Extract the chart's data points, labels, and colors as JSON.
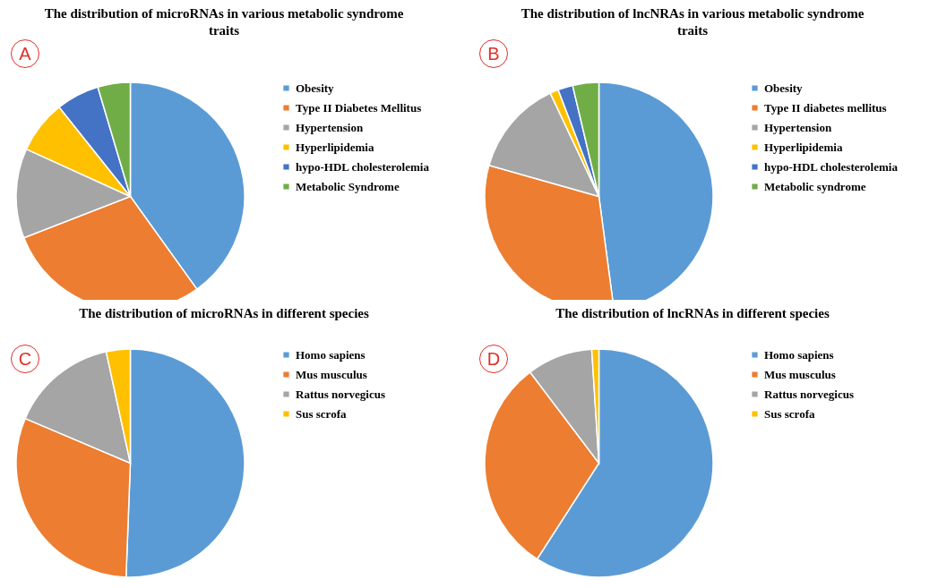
{
  "chart_data": [
    {
      "type": "pie",
      "title": "The distribution of microRNAs in various metabolic syndrome traits",
      "annotations": [
        "A"
      ],
      "legend": "right",
      "categories": [
        "Obesity",
        "Type II Diabetes Mellitus",
        "Hypertension",
        "Hyperlipidemia",
        "hypo-HDL cholesterolemia",
        "Metabolic Syndrome"
      ],
      "values": [
        40.1,
        29,
        12.7,
        7.5,
        6.1,
        4.6
      ],
      "colors": [
        "#5b9bd5",
        "#ed7d31",
        "#a5a5a5",
        "#ffc000",
        "#4472c4",
        "#70ad47"
      ]
    },
    {
      "type": "pie",
      "title": "The distribution of lncNRAs in various metabolic syndrome traits",
      "annotations": [
        "B"
      ],
      "legend": "right",
      "categories": [
        "Obesity",
        "Type II diabetes mellitus",
        "Hypertension",
        "Hyperlipidemia",
        "hypo-HDL cholesterolemia",
        "Metabolic syndrome"
      ],
      "values": [
        47.9,
        31.5,
        13.6,
        1.2,
        2.1,
        3.7
      ],
      "colors": [
        "#5b9bd5",
        "#ed7d31",
        "#a5a5a5",
        "#ffc000",
        "#4472c4",
        "#70ad47"
      ]
    },
    {
      "type": "pie",
      "title": "The distribution of microRNAs in different species",
      "annotations": [
        "C"
      ],
      "legend": "right",
      "categories": [
        "Homo sapiens",
        "Mus musculus",
        "Rattus norvegicus",
        "Sus scrofa"
      ],
      "values": [
        50.6,
        30.8,
        15.2,
        3.4
      ],
      "colors": [
        "#5b9bd5",
        "#ed7d31",
        "#a5a5a5",
        "#ffc000"
      ]
    },
    {
      "type": "pie",
      "title": "The distribution of lncRNAs in different species",
      "annotations": [
        "D"
      ],
      "legend": "right",
      "categories": [
        "Homo sapiens",
        "Mus musculus",
        "Rattus norvegicus",
        "Sus scrofa"
      ],
      "values": [
        59.1,
        30.6,
        9.3,
        1.0
      ],
      "colors": [
        "#5b9bd5",
        "#ed7d31",
        "#a5a5a5",
        "#ffc000"
      ]
    }
  ]
}
